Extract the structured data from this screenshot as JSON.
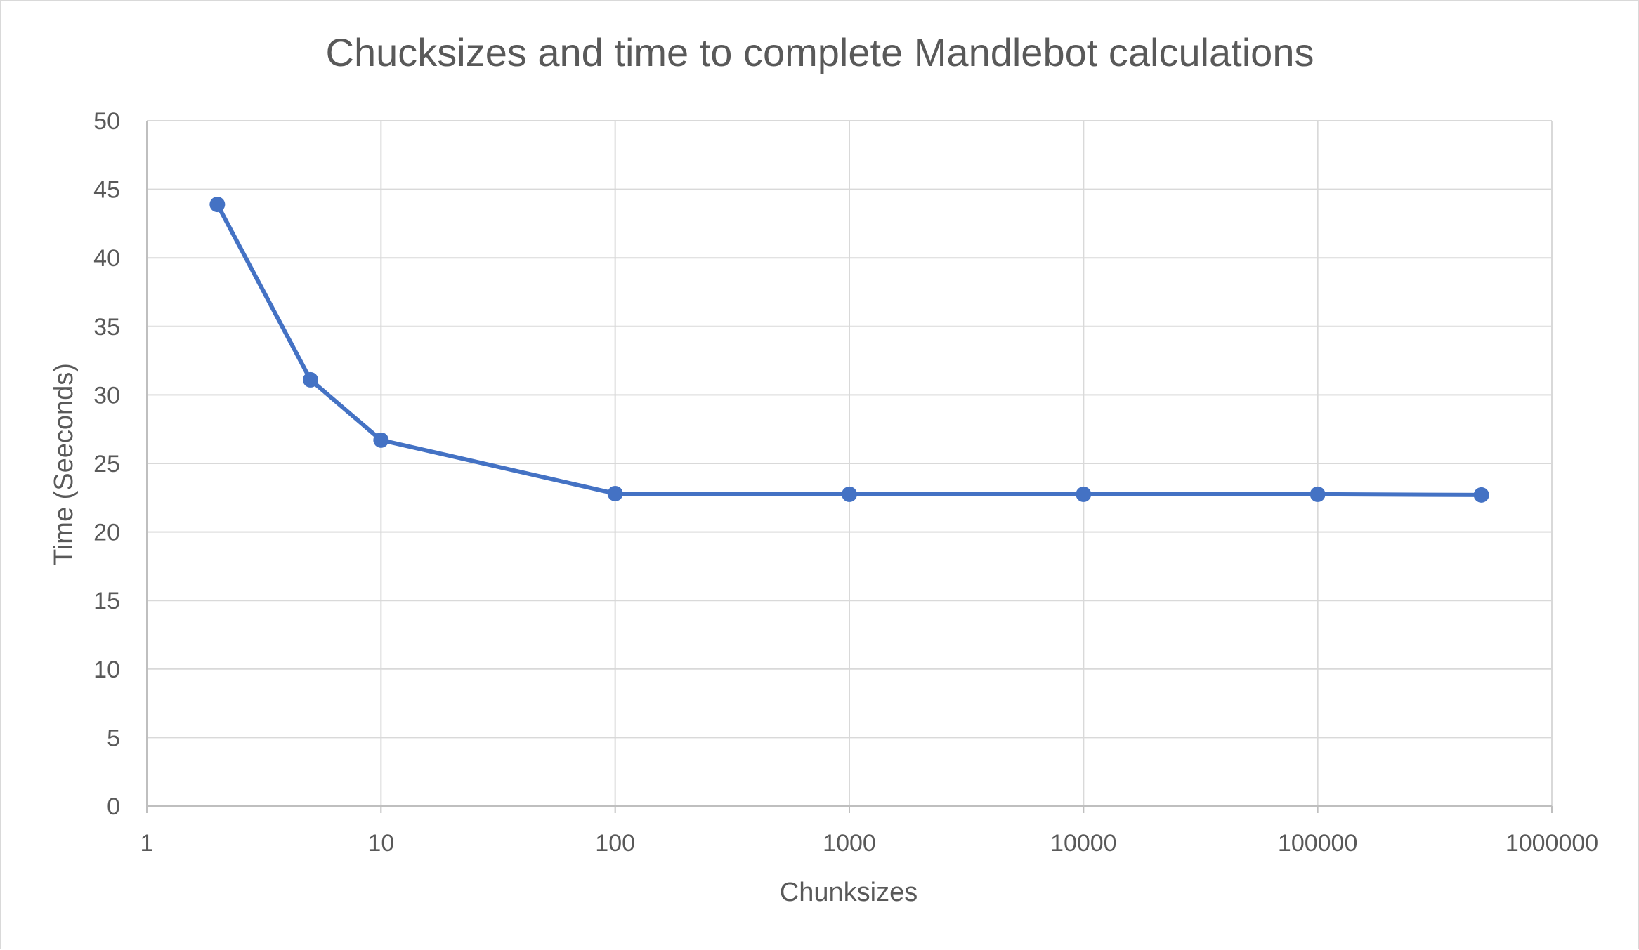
{
  "chart_data": {
    "type": "line",
    "title": "Chucksizes and time to complete Mandlebot calculations",
    "xlabel": "Chunksizes",
    "ylabel": "Time (Seeconds)",
    "x_scale": "log",
    "xlim": [
      1,
      1000000
    ],
    "ylim": [
      0,
      50
    ],
    "x_ticks": [
      1,
      10,
      100,
      1000,
      10000,
      100000,
      1000000
    ],
    "x_tick_labels": [
      "1",
      "10",
      "100",
      "1000",
      "10000",
      "100000",
      "1000000"
    ],
    "y_ticks": [
      0,
      5,
      10,
      15,
      20,
      25,
      30,
      35,
      40,
      45,
      50
    ],
    "y_tick_labels": [
      "0",
      "5",
      "10",
      "15",
      "20",
      "25",
      "30",
      "35",
      "40",
      "45",
      "50"
    ],
    "grid": true,
    "legend": "none",
    "series": [
      {
        "color": "#4472c4",
        "x": [
          2,
          5,
          10,
          100,
          1000,
          10000,
          100000,
          500000
        ],
        "y": [
          43.9,
          31.1,
          26.7,
          22.8,
          22.75,
          22.75,
          22.75,
          22.7
        ]
      }
    ]
  }
}
